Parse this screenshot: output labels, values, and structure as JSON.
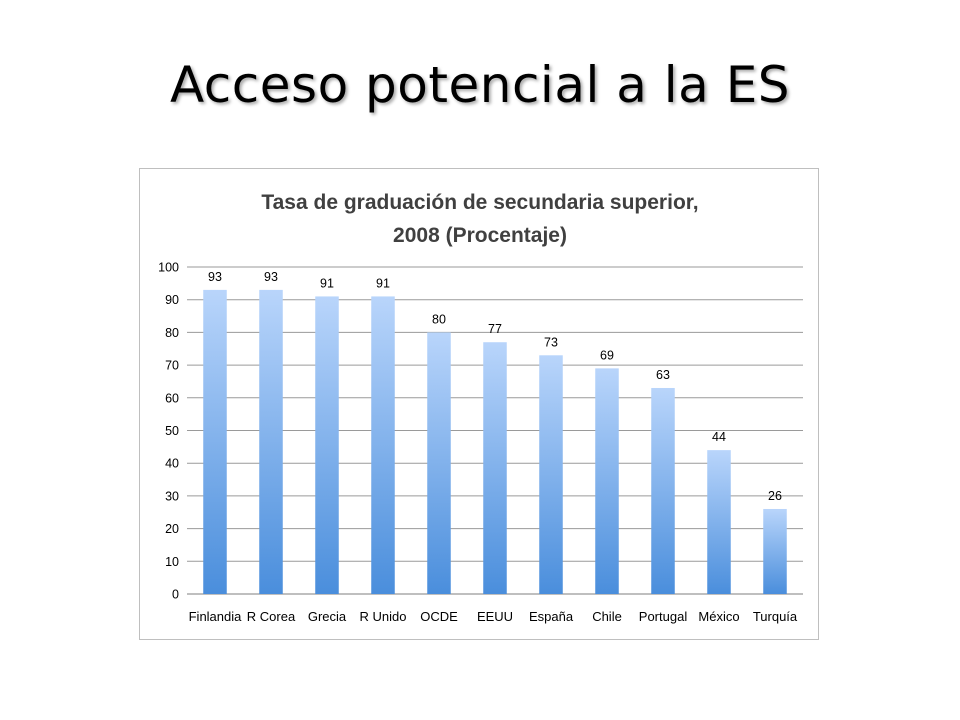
{
  "slide": {
    "title": "Acceso potencial a la ES"
  },
  "chart_data": {
    "type": "bar",
    "title_lines": [
      "Tasa de graduación de secundaria superior,",
      "2008 (Procentaje)"
    ],
    "categories": [
      "Finlandia",
      "R Corea",
      "Grecia",
      "R Unido",
      "OCDE",
      "EEUU",
      "España",
      "Chile",
      "Portugal",
      "México",
      "Turquía"
    ],
    "values": [
      93,
      93,
      91,
      91,
      80,
      77,
      73,
      69,
      63,
      44,
      26
    ],
    "ylim": [
      0,
      100
    ],
    "yticks": [
      0,
      10,
      20,
      30,
      40,
      50,
      60,
      70,
      80,
      90,
      100
    ],
    "grid": true,
    "data_labels": true,
    "colors": {
      "bar_top": "#b9d5fb",
      "bar_bottom": "#4a8edc"
    }
  }
}
